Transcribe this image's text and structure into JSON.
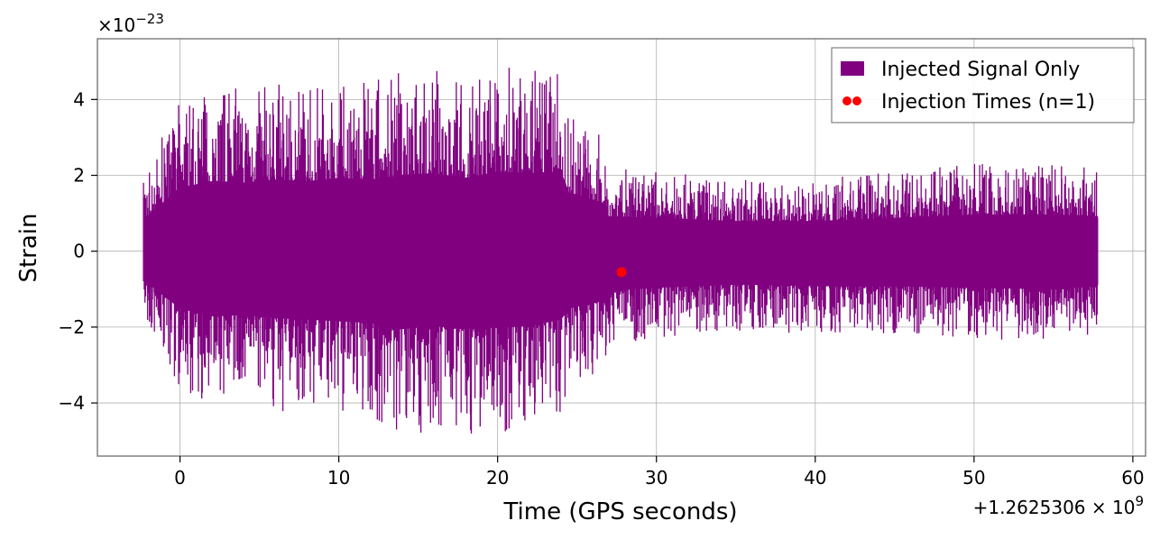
{
  "chart_data": {
    "type": "line",
    "title": "",
    "xlabel": "Time (GPS seconds)",
    "ylabel": "Strain",
    "y_scale_label": "×10",
    "y_scale_exp": "−23",
    "x_offset_label": "+1.2625306 × 10",
    "x_offset_exp": "9",
    "xlim": [
      -5.2,
      60.8
    ],
    "ylim": [
      -5.4,
      5.6
    ],
    "x_ticks": [
      0,
      10,
      20,
      30,
      40,
      50,
      60
    ],
    "x_tick_labels": [
      "0",
      "10",
      "20",
      "30",
      "40",
      "50",
      "60"
    ],
    "y_ticks": [
      -4,
      -2,
      0,
      2,
      4
    ],
    "y_tick_labels": [
      "−4",
      "−2",
      "0",
      "2",
      "4"
    ],
    "grid": true,
    "legend_position": "top-right",
    "colors": {
      "signal": "#800080",
      "injection": "#ff0000",
      "grid": "#b0b0b0",
      "frame": "#808080"
    },
    "series": [
      {
        "name": "Injected Signal Only",
        "kind": "strain",
        "x_range": [
          -2.3,
          57.8
        ],
        "envelope": {
          "x": [
            -2.3,
            0,
            2,
            4,
            6,
            8,
            10,
            12,
            14,
            16,
            18,
            20,
            22,
            24,
            24.5,
            26.8,
            27,
            30,
            35,
            40,
            45,
            50,
            55,
            57.8
          ],
          "upper": [
            2.0,
            4.0,
            4.4,
            4.3,
            4.5,
            4.4,
            4.6,
            4.5,
            4.8,
            4.9,
            4.6,
            5.0,
            4.9,
            5.0,
            3.7,
            3.0,
            2.2,
            2.1,
            1.9,
            1.9,
            2.1,
            2.3,
            2.3,
            2.2
          ],
          "lower": [
            -1.8,
            -3.6,
            -4.1,
            -4.0,
            -4.2,
            -4.3,
            -4.4,
            -4.5,
            -4.9,
            -4.7,
            -4.9,
            -4.8,
            -4.7,
            -4.3,
            -3.6,
            -3.1,
            -2.5,
            -2.3,
            -2.1,
            -2.2,
            -2.2,
            -2.3,
            -2.4,
            -2.2
          ]
        }
      },
      {
        "name": "Injection Times (n=1)",
        "kind": "points",
        "x": [
          27.8
        ],
        "y": [
          -0.55
        ]
      }
    ]
  }
}
